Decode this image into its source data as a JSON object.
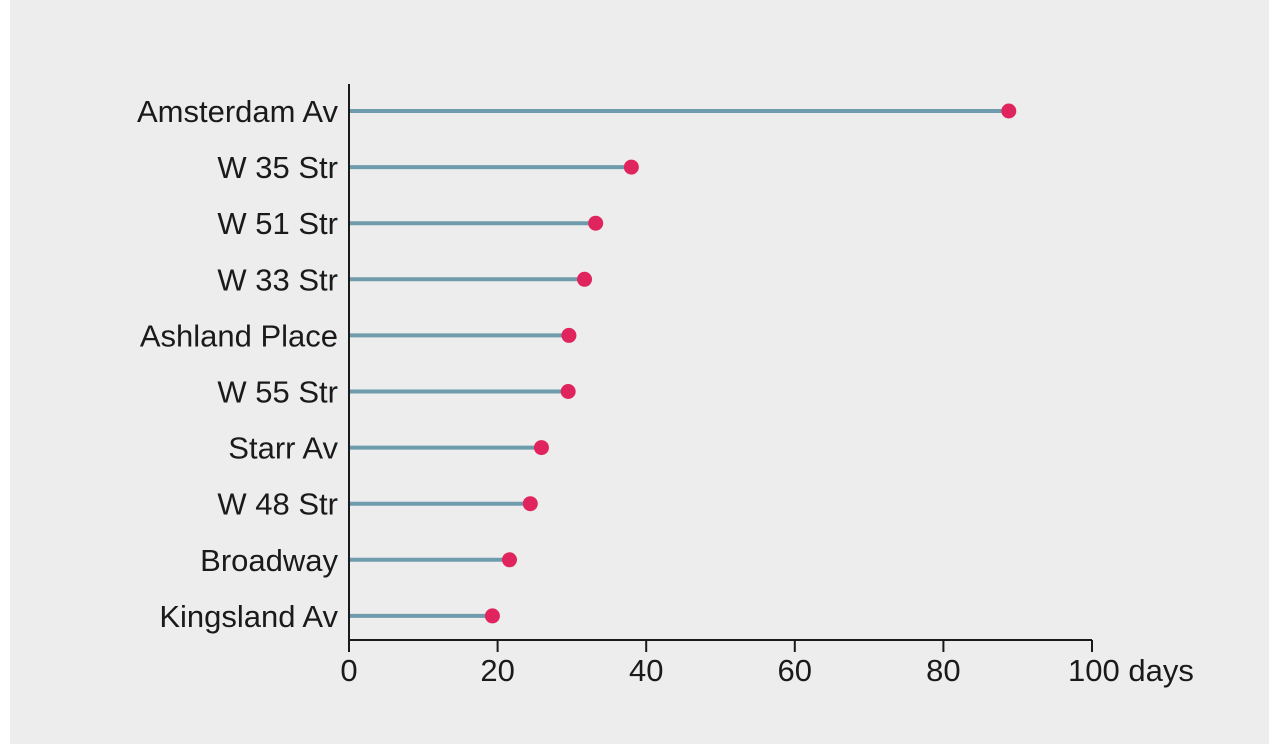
{
  "chart_data": {
    "type": "lollipop",
    "categories": [
      "Amsterdam Av",
      "W 35 Str",
      "W 51 Str",
      "W 33 Str",
      "Ashland Place",
      "W 55 Str",
      "Starr Av",
      "W 48 Str",
      "Broadway",
      "Kingsland Av"
    ],
    "values": [
      88.8,
      38.0,
      33.2,
      31.7,
      29.6,
      29.5,
      25.9,
      24.4,
      21.6,
      19.3
    ],
    "xlim": [
      0,
      100
    ],
    "xticks": [
      0,
      20,
      40,
      60,
      80,
      100
    ],
    "xtick_labels": [
      "0",
      "20",
      "40",
      "60",
      "80",
      "100 days"
    ],
    "grid": false,
    "colors": {
      "stem": "#6e9cad",
      "dot": "#e0245e",
      "axis": "#1a1a1a",
      "background": "#ededed"
    }
  }
}
